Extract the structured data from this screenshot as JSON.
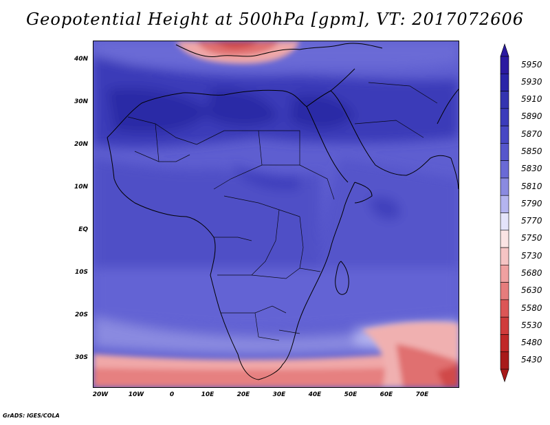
{
  "title": "Geopotential Height at 500hPa [gpm], VT: 2017072606",
  "y_axis_labels": [
    "40N",
    "30N",
    "20N",
    "10N",
    "EQ",
    "10S",
    "20S",
    "30S"
  ],
  "x_axis_labels": [
    "20W",
    "10W",
    "0",
    "10E",
    "20E",
    "30E",
    "40E",
    "50E",
    "60E",
    "70E"
  ],
  "legend": {
    "levels": [
      "5950",
      "5930",
      "5910",
      "5890",
      "5870",
      "5850",
      "5830",
      "5810",
      "5790",
      "5770",
      "5750",
      "5730",
      "5680",
      "5630",
      "5580",
      "5530",
      "5480",
      "5430"
    ],
    "colors": [
      "#2b1aa0",
      "#2a24a8",
      "#3434b0",
      "#3c3cbb",
      "#4848c4",
      "#5656cc",
      "#6a6ad6",
      "#8a8ae0",
      "#b4b4ef",
      "#e4e4fb",
      "#fbe4e4",
      "#f6c4c4",
      "#f0a0a0",
      "#e67c7c",
      "#dc5656",
      "#d03c3c",
      "#c02828",
      "#a81a1a"
    ],
    "extends": "both"
  },
  "footer": "GrADS: IGES/COLA"
}
